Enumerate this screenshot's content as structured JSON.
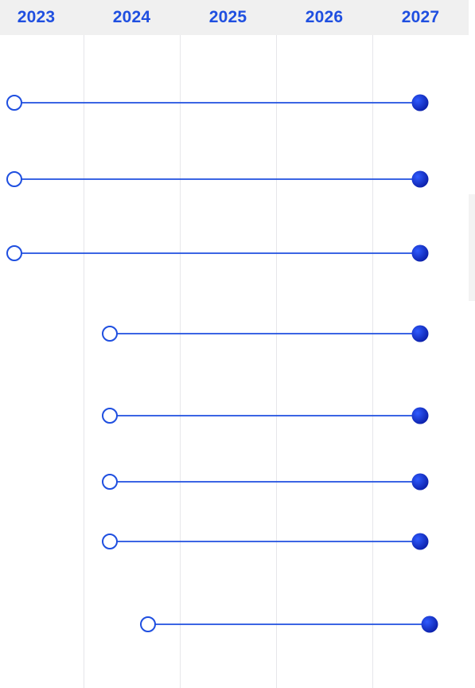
{
  "timeline": {
    "years": [
      "2023",
      "2024",
      "2025",
      "2026",
      "2027"
    ]
  },
  "colors": {
    "accent": "#1f4fe0",
    "line": "#1f4fe0",
    "end_fill_dark": "#0b1fa8",
    "header_bg": "#f0f0f0",
    "grid": "#e6e6ea"
  },
  "rows": [
    {
      "start": 2023.0,
      "end": 2027.0
    },
    {
      "start": 2023.0,
      "end": 2027.0
    },
    {
      "start": 2023.0,
      "end": 2027.0
    },
    {
      "start": 2024.0,
      "end": 2027.0
    },
    {
      "start": 2024.0,
      "end": 2027.0
    },
    {
      "start": 2024.0,
      "end": 2027.0
    },
    {
      "start": 2024.0,
      "end": 2027.0
    },
    {
      "start": 2024.4,
      "end": 2027.1
    }
  ]
}
